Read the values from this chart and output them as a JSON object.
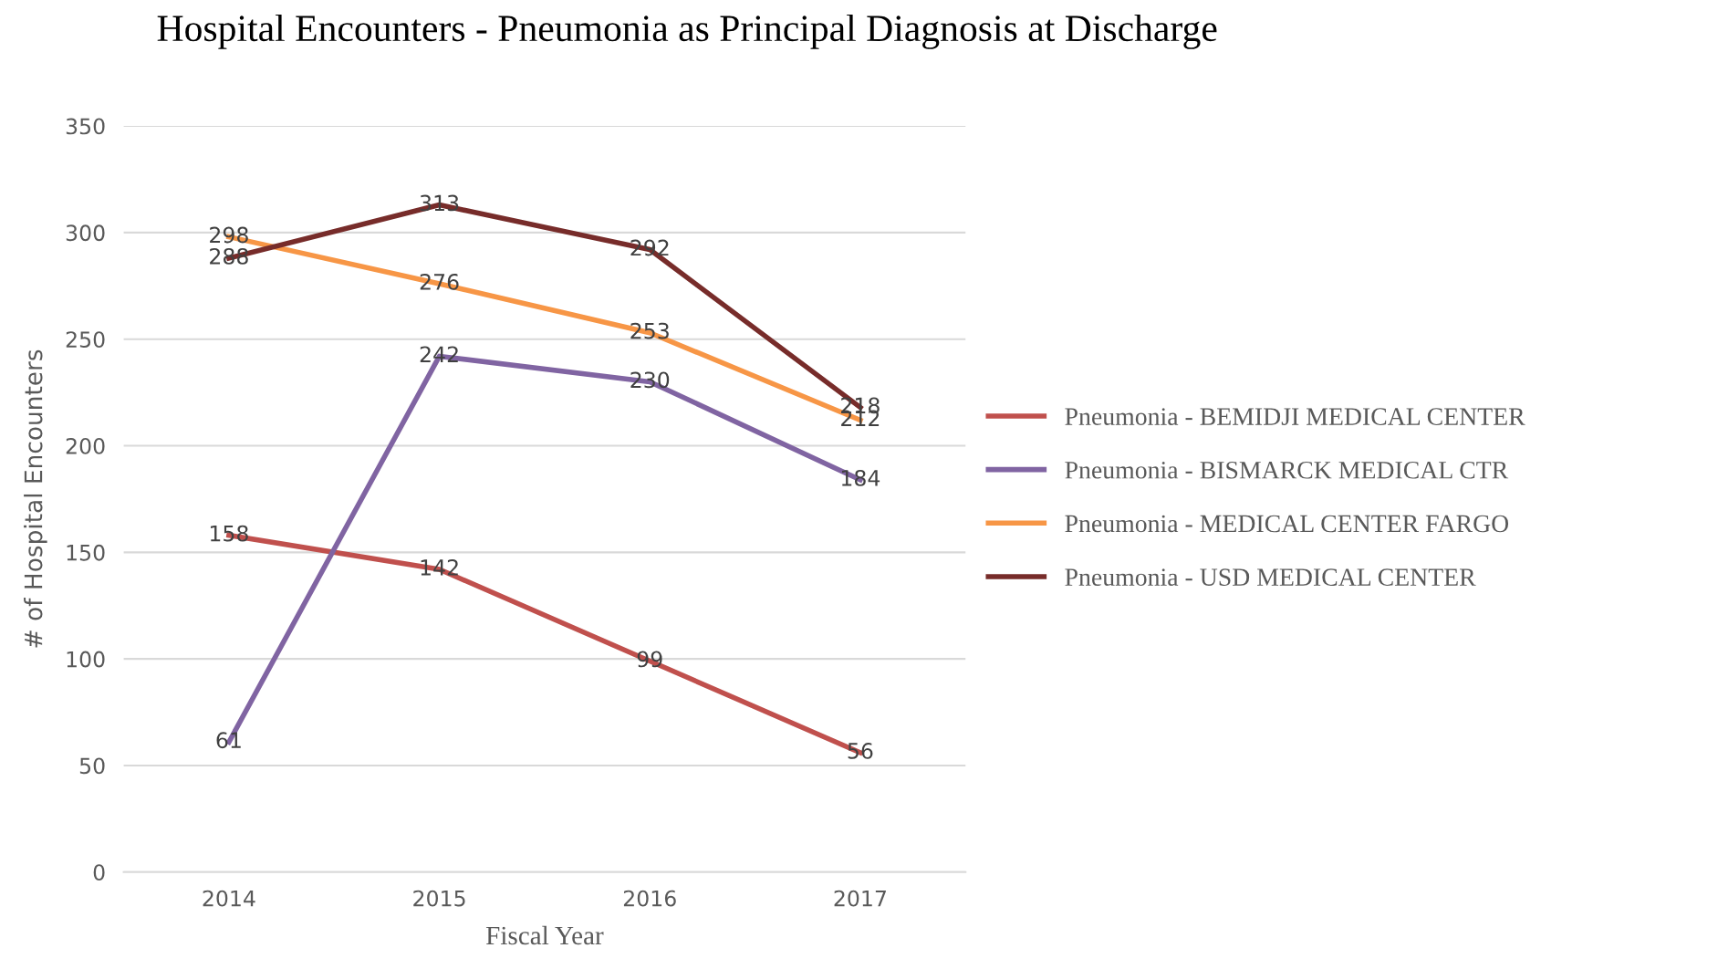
{
  "chart_data": {
    "type": "line",
    "title": "Hospital Encounters - Pneumonia as Principal Diagnosis at Discharge",
    "xlabel": "Fiscal Year",
    "ylabel": "# of Hospital Encounters",
    "categories": [
      "2014",
      "2015",
      "2016",
      "2017"
    ],
    "series": [
      {
        "name": "Pneumonia - BEMIDJI MEDICAL CENTER",
        "color": "#c0504d",
        "values": [
          158,
          142,
          99,
          56
        ]
      },
      {
        "name": "Pneumonia - BISMARCK MEDICAL CTR",
        "color": "#8064a2",
        "values": [
          61,
          242,
          230,
          184
        ]
      },
      {
        "name": "Pneumonia - MEDICAL CENTER FARGO",
        "color": "#f79646",
        "values": [
          298,
          276,
          253,
          212
        ]
      },
      {
        "name": "Pneumonia - USD MEDICAL CENTER",
        "color": "#772c2a",
        "values": [
          288,
          313,
          292,
          218
        ]
      }
    ],
    "ylim": [
      0,
      350
    ],
    "yticks": [
      0,
      50,
      100,
      150,
      200,
      250,
      300,
      350
    ],
    "grid": "y",
    "legend": "right",
    "data_labels": true,
    "marker": "none",
    "line_style": "solid"
  }
}
